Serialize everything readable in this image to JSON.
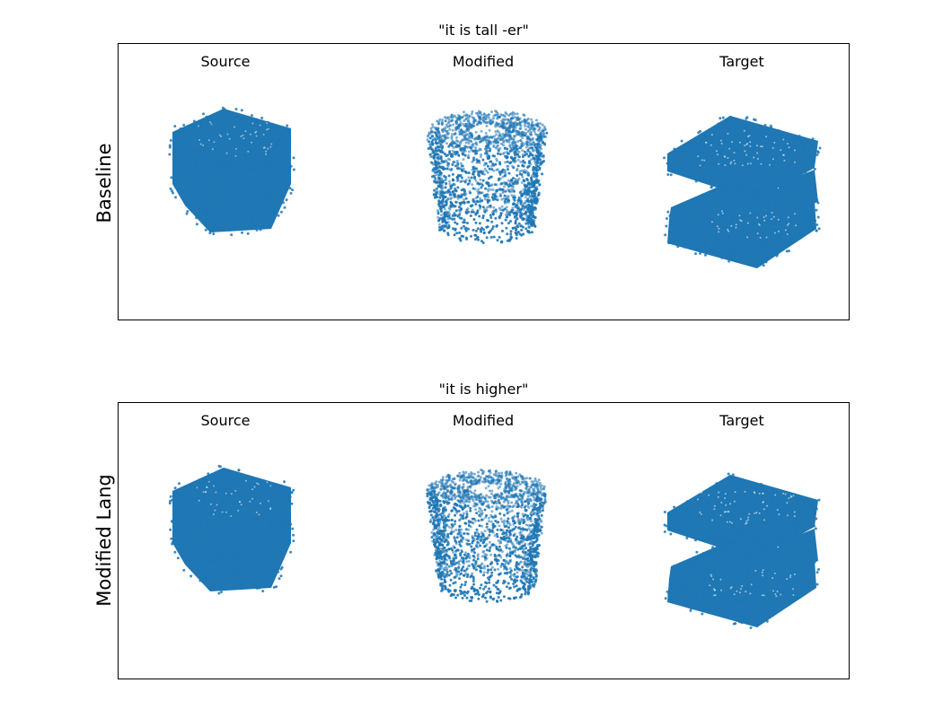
{
  "colors": {
    "point_color": "#1f77b4",
    "frame_color": "#000000",
    "background": "#ffffff"
  },
  "panels": [
    {
      "title": "\"it is tall -er\"",
      "row_label": "Baseline",
      "columns": [
        "Source",
        "Modified",
        "Target"
      ],
      "shapes": [
        "chair-block",
        "cylinder-bowl",
        "stacked-boxes"
      ]
    },
    {
      "title": "\"it is higher\"",
      "row_label": "Modified Lang",
      "columns": [
        "Source",
        "Modified",
        "Target"
      ],
      "shapes": [
        "chair-block",
        "cylinder-bowl",
        "stacked-boxes"
      ]
    }
  ]
}
